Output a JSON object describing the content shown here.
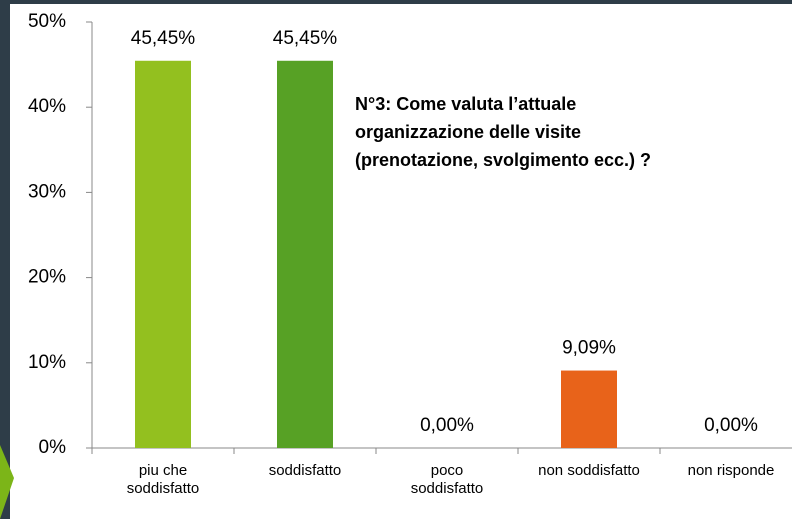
{
  "chart_data": {
    "type": "bar",
    "title": [
      "N°3: Come valuta l’attuale",
      "organizzazione delle visite",
      "(prenotazione, svolgimento ecc.) ?"
    ],
    "categories": [
      "piu che soddisfatto",
      "soddisfatto",
      "poco soddisfatto",
      "non soddisfatto",
      "non risponde"
    ],
    "values": [
      45.45,
      45.45,
      0,
      9.09,
      0
    ],
    "value_labels": [
      "45,45%",
      "45,45%",
      "0,00%",
      "9,09%",
      "0,00%"
    ],
    "colors": [
      "#93c01f",
      "#57a125",
      "#93c01f",
      "#e8631a",
      "#93c01f"
    ],
    "ylim": [
      0,
      50
    ],
    "yticks": [
      {
        "value": 0,
        "label": "0%"
      },
      {
        "value": 10,
        "label": "10%"
      },
      {
        "value": 20,
        "label": "20%"
      },
      {
        "value": 30,
        "label": "30%"
      },
      {
        "value": 40,
        "label": "40%"
      },
      {
        "value": 50,
        "label": "50%"
      }
    ],
    "grid": false
  }
}
